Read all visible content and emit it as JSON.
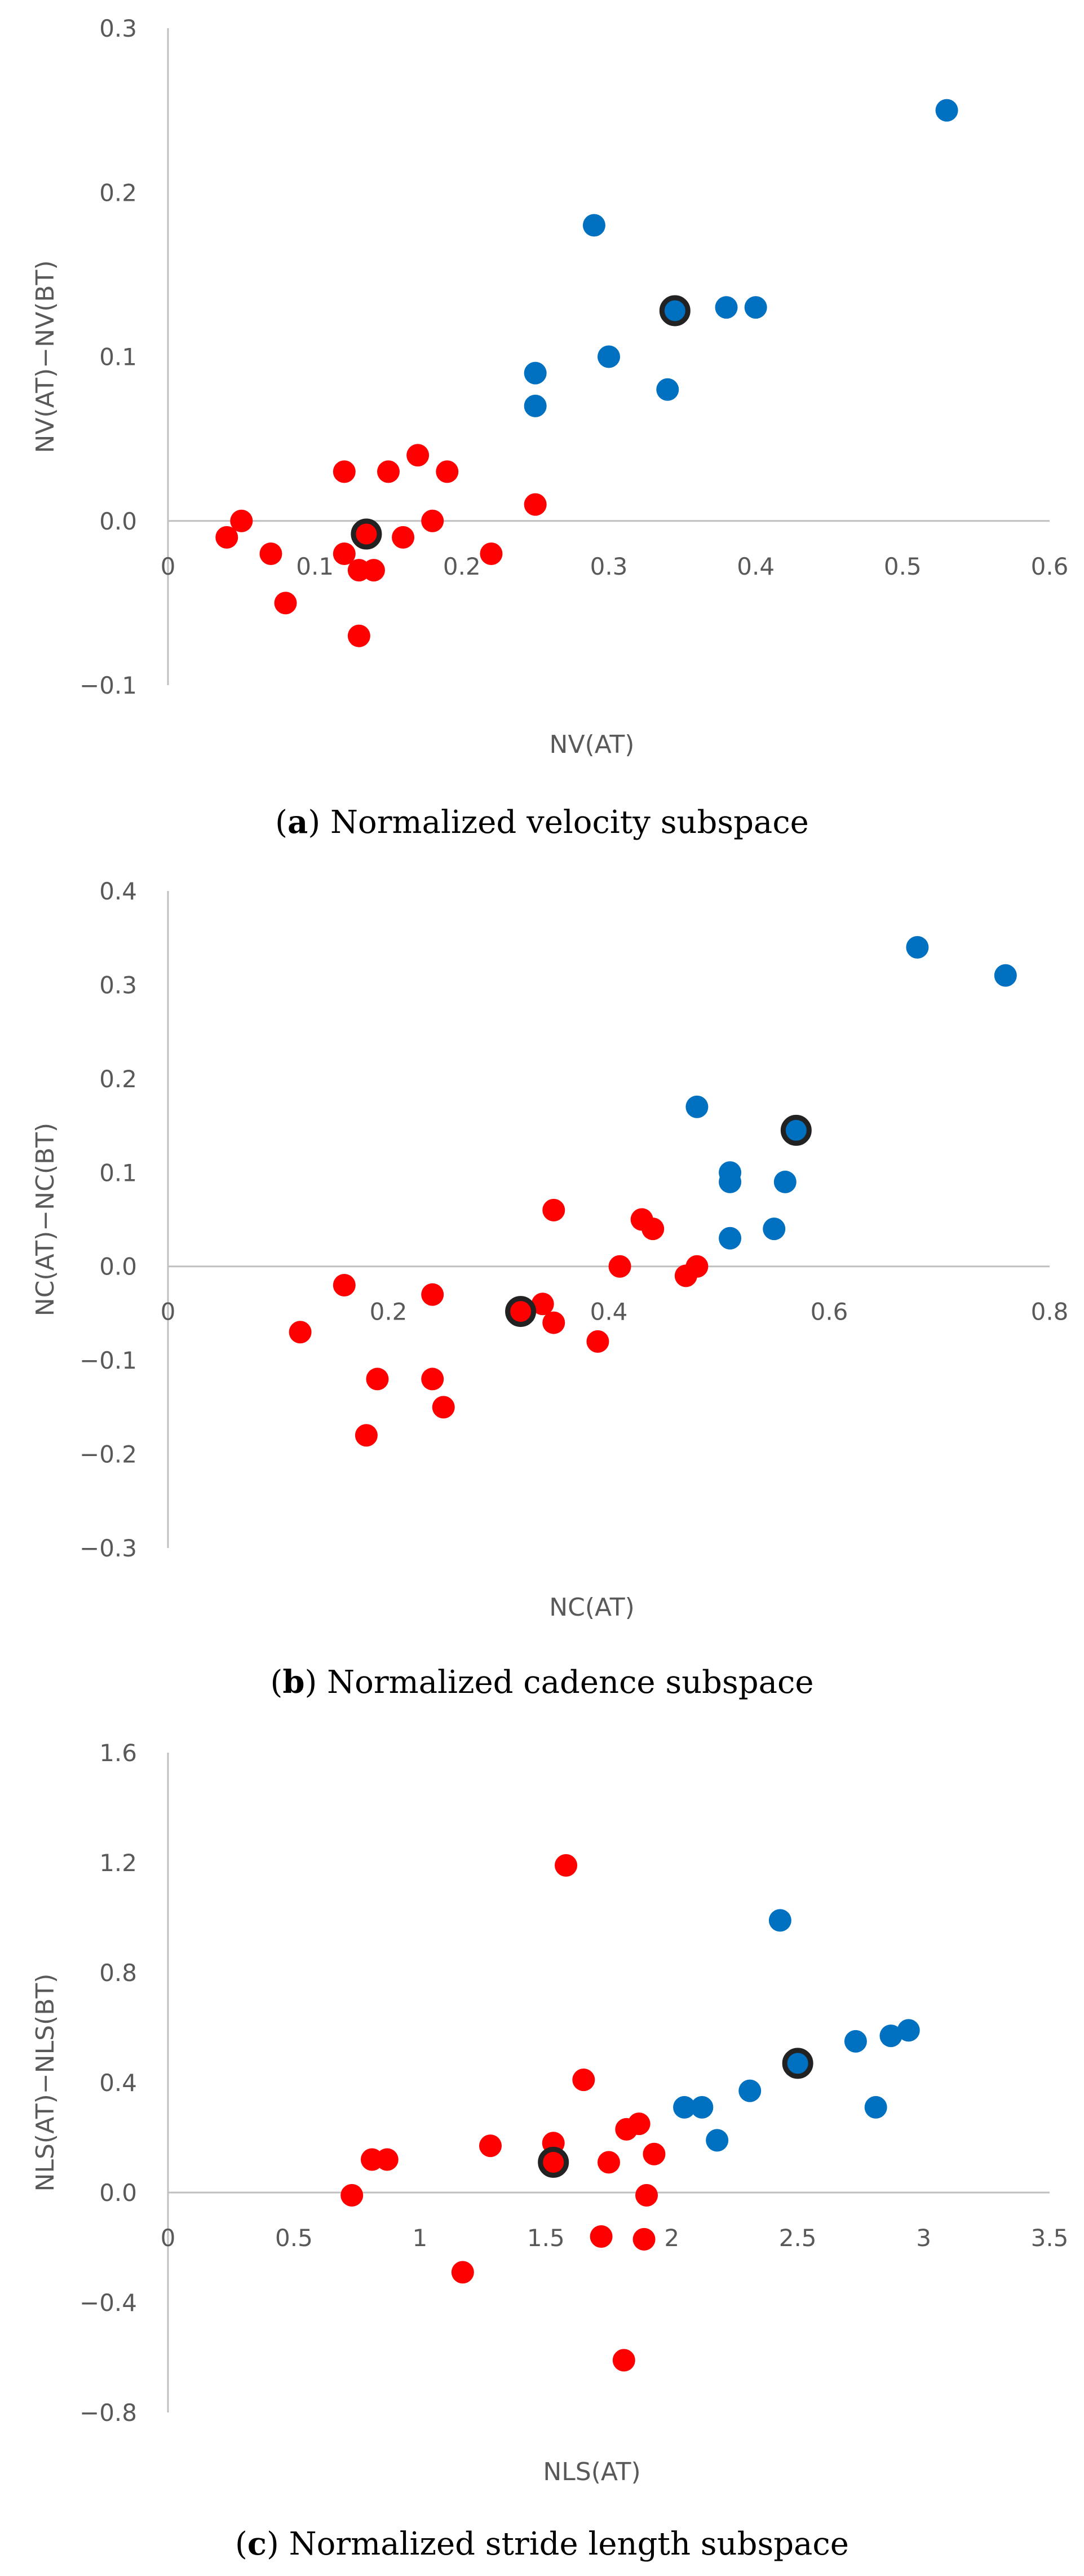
{
  "chart_data": [
    {
      "type": "scatter",
      "title": "",
      "xlabel": "NV(AT)",
      "ylabel": "NV(AT)−NV(BT)",
      "xlim": [
        0,
        0.6
      ],
      "ylim": [
        -0.1,
        0.3
      ],
      "x_ticks": [
        "0",
        "0.1",
        "0.2",
        "0.3",
        "0.4",
        "0.5",
        "0.6"
      ],
      "y_ticks": [
        "−0.1",
        "0.0",
        "0.1",
        "0.2",
        "0.3"
      ],
      "caption": {
        "letter": "a",
        "text": "Normalized velocity subspace"
      },
      "series": [
        {
          "name": "blue",
          "color": "#0070C0",
          "points": [
            [
              0.53,
              0.25
            ],
            [
              0.29,
              0.18
            ],
            [
              0.38,
              0.13
            ],
            [
              0.4,
              0.13
            ],
            [
              0.3,
              0.1
            ],
            [
              0.25,
              0.09
            ],
            [
              0.34,
              0.08
            ],
            [
              0.25,
              0.07
            ]
          ]
        },
        {
          "name": "red",
          "color": "#FF0000",
          "points": [
            [
              0.05,
              0.0
            ],
            [
              0.04,
              -0.01
            ],
            [
              0.07,
              -0.02
            ],
            [
              0.08,
              -0.05
            ],
            [
              0.12,
              0.03
            ],
            [
              0.12,
              -0.02
            ],
            [
              0.13,
              -0.03
            ],
            [
              0.14,
              -0.03
            ],
            [
              0.13,
              -0.07
            ],
            [
              0.15,
              0.03
            ],
            [
              0.16,
              -0.01
            ],
            [
              0.17,
              0.04
            ],
            [
              0.18,
              0.0
            ],
            [
              0.19,
              0.03
            ],
            [
              0.22,
              -0.02
            ],
            [
              0.25,
              0.01
            ]
          ]
        },
        {
          "name": "highlighted",
          "color": "#FF0000",
          "outline": "#222222",
          "points": [
            [
              0.135,
              -0.008
            ]
          ]
        },
        {
          "name": "highlighted",
          "color": "#0070C0",
          "outline": "#222222",
          "points": [
            [
              0.345,
              0.128
            ]
          ]
        }
      ]
    },
    {
      "type": "scatter",
      "title": "",
      "xlabel": "NC(AT)",
      "ylabel": "NC(AT)−NC(BT)",
      "xlim": [
        0,
        0.8
      ],
      "ylim": [
        -0.3,
        0.4
      ],
      "x_ticks": [
        "0",
        "0.2",
        "0.4",
        "0.6",
        "0.8"
      ],
      "y_ticks": [
        "−0.3",
        "−0.2",
        "−0.1",
        "0.0",
        "0.1",
        "0.2",
        "0.3",
        "0.4"
      ],
      "caption": {
        "letter": "b",
        "text": "Normalized cadence subspace"
      },
      "series": [
        {
          "name": "blue",
          "color": "#0070C0",
          "points": [
            [
              0.68,
              0.34
            ],
            [
              0.76,
              0.31
            ],
            [
              0.48,
              0.17
            ],
            [
              0.51,
              0.1
            ],
            [
              0.51,
              0.09
            ],
            [
              0.56,
              0.09
            ],
            [
              0.55,
              0.04
            ],
            [
              0.51,
              0.03
            ]
          ]
        },
        {
          "name": "red",
          "color": "#FF0000",
          "points": [
            [
              0.12,
              -0.07
            ],
            [
              0.16,
              -0.02
            ],
            [
              0.18,
              -0.18
            ],
            [
              0.19,
              -0.12
            ],
            [
              0.24,
              -0.03
            ],
            [
              0.24,
              -0.12
            ],
            [
              0.25,
              -0.15
            ],
            [
              0.34,
              -0.04
            ],
            [
              0.35,
              0.06
            ],
            [
              0.35,
              -0.06
            ],
            [
              0.39,
              -0.08
            ],
            [
              0.41,
              0.0
            ],
            [
              0.43,
              0.05
            ],
            [
              0.44,
              0.04
            ],
            [
              0.47,
              -0.01
            ],
            [
              0.48,
              0.0
            ]
          ]
        },
        {
          "name": "highlighted",
          "color": "#FF0000",
          "outline": "#222222",
          "points": [
            [
              0.32,
              -0.048
            ]
          ]
        },
        {
          "name": "highlighted",
          "color": "#0070C0",
          "outline": "#222222",
          "points": [
            [
              0.57,
              0.145
            ]
          ]
        }
      ]
    },
    {
      "type": "scatter",
      "title": "",
      "xlabel": "NLS(AT)",
      "ylabel": "NLS(AT)−NLS(BT)",
      "xlim": [
        0,
        3.5
      ],
      "ylim": [
        -0.8,
        1.6
      ],
      "x_ticks": [
        "0",
        "0.5",
        "1",
        "1.5",
        "2",
        "2.5",
        "3",
        "3.5"
      ],
      "y_ticks": [
        "−0.8",
        "−0.4",
        "0.0",
        "0.4",
        "0.8",
        "1.2",
        "1.6"
      ],
      "caption": {
        "letter": "c",
        "text": "Normalized stride length subspace"
      },
      "series": [
        {
          "name": "blue",
          "color": "#0070C0",
          "points": [
            [
              2.43,
              0.99
            ],
            [
              2.94,
              0.59
            ],
            [
              2.87,
              0.57
            ],
            [
              2.73,
              0.55
            ],
            [
              2.31,
              0.37
            ],
            [
              2.05,
              0.31
            ],
            [
              2.12,
              0.31
            ],
            [
              2.81,
              0.31
            ],
            [
              2.18,
              0.19
            ]
          ]
        },
        {
          "name": "red",
          "color": "#FF0000",
          "points": [
            [
              1.58,
              1.19
            ],
            [
              1.65,
              0.41
            ],
            [
              1.87,
              0.25
            ],
            [
              1.82,
              0.23
            ],
            [
              1.28,
              0.17
            ],
            [
              1.53,
              0.18
            ],
            [
              0.81,
              0.12
            ],
            [
              0.87,
              0.12
            ],
            [
              1.75,
              0.11
            ],
            [
              1.93,
              0.14
            ],
            [
              0.73,
              -0.01
            ],
            [
              1.9,
              -0.01
            ],
            [
              1.17,
              -0.29
            ],
            [
              1.72,
              -0.16
            ],
            [
              1.89,
              -0.17
            ],
            [
              1.81,
              -0.61
            ]
          ]
        },
        {
          "name": "highlighted",
          "color": "#FF0000",
          "outline": "#222222",
          "points": [
            [
              1.53,
              0.11
            ]
          ]
        },
        {
          "name": "highlighted",
          "color": "#0070C0",
          "outline": "#222222",
          "points": [
            [
              2.5,
              0.47
            ]
          ]
        }
      ]
    }
  ]
}
